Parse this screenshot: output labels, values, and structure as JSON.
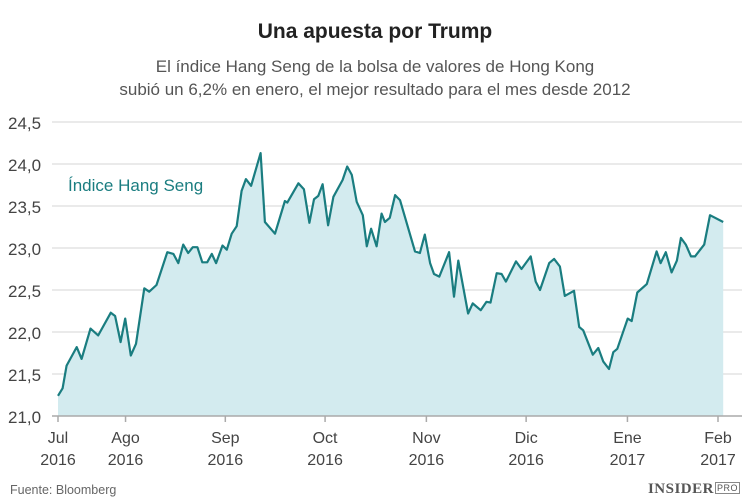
{
  "chart_data": {
    "type": "area",
    "title": "Una apuesta por Trump",
    "subtitle_lines": [
      "El índice Hang Seng de la bolsa de valores de Hong Kong",
      "subió un 6,2% en enero, el mejor resultado para el mes desde 2012"
    ],
    "series_label": "Índice Hang Seng",
    "x_unit": "days since 1 Jul 2016",
    "xlim": [
      0,
      215
    ],
    "ylim": [
      21.0,
      24.5
    ],
    "y_ticks": [
      21.0,
      21.5,
      22.0,
      22.5,
      23.0,
      23.5,
      24.0,
      24.5
    ],
    "y_tick_labels": [
      "21,0",
      "21,5",
      "22,0",
      "22,5",
      "23,0",
      "23,5",
      "24,0",
      "24,5"
    ],
    "x_ticks": [
      {
        "day": 0,
        "month": "Jul",
        "year": "2016"
      },
      {
        "day": 22,
        "month": "Ago",
        "year": "2016"
      },
      {
        "day": 54.5,
        "month": "Sep",
        "year": "2016"
      },
      {
        "day": 87,
        "month": "Oct",
        "year": "2016"
      },
      {
        "day": 120,
        "month": "Nov",
        "year": "2016"
      },
      {
        "day": 152.5,
        "month": "Dic",
        "year": "2016"
      },
      {
        "day": 185.5,
        "month": "Ene",
        "year": "2017"
      },
      {
        "day": 215,
        "month": "Feb",
        "year": "2017"
      }
    ],
    "x": [
      0,
      1.5,
      2.8,
      6.1,
      7.7,
      10.6,
      13.1,
      17.2,
      18.6,
      20.4,
      21.9,
      23.7,
      25.4,
      28.1,
      29.7,
      32.1,
      35.6,
      37.6,
      39.2,
      40.8,
      42.4,
      43.9,
      45.4,
      47,
      48.6,
      50.1,
      51.5,
      53.6,
      55,
      56.6,
      58.2,
      59.8,
      61.2,
      62.9,
      66,
      67.4,
      70.7,
      73.9,
      74.7,
      78.3,
      80.1,
      81.9,
      83.4,
      84.8,
      86.2,
      88,
      89.7,
      92.7,
      94.2,
      95.7,
      97.3,
      99.3,
      100.6,
      102,
      103.8,
      105.4,
      106.5,
      108.1,
      109.8,
      111.4,
      116.3,
      117.9,
      119.5,
      121.2,
      122.5,
      124.2,
      127.4,
      129,
      130.4,
      133.6,
      135.1,
      137.7,
      139.6,
      140.9,
      142.9,
      144.5,
      145.9,
      149.2,
      151,
      154,
      155.6,
      157,
      160,
      161.6,
      163.5,
      165.1,
      168.1,
      169.8,
      171.1,
      174.2,
      176,
      177.6,
      179.5,
      180.9,
      182.2,
      183.9,
      185.6,
      186.9,
      188.7,
      191.8,
      195,
      196.3,
      198,
      199.9,
      201.6,
      202.9,
      204.5,
      206.2,
      207.5,
      210.5,
      212.4,
      216.7
    ],
    "values": [
      21.24,
      21.33,
      21.6,
      21.82,
      21.68,
      22.04,
      21.96,
      22.23,
      22.19,
      21.88,
      22.16,
      21.72,
      21.86,
      22.52,
      22.48,
      22.56,
      22.95,
      22.93,
      22.82,
      23.04,
      22.94,
      23.01,
      23.01,
      22.83,
      22.83,
      22.93,
      22.82,
      23.03,
      22.98,
      23.17,
      23.26,
      23.68,
      23.82,
      23.74,
      24.13,
      23.31,
      23.17,
      23.56,
      23.54,
      23.77,
      23.7,
      23.3,
      23.58,
      23.62,
      23.76,
      23.27,
      23.61,
      23.81,
      23.97,
      23.87,
      23.55,
      23.39,
      23.02,
      23.23,
      23.02,
      23.41,
      23.31,
      23.36,
      23.63,
      23.57,
      22.96,
      22.94,
      23.16,
      22.82,
      22.69,
      22.66,
      22.95,
      22.42,
      22.85,
      22.22,
      22.34,
      22.26,
      22.36,
      22.35,
      22.7,
      22.69,
      22.6,
      22.84,
      22.75,
      22.9,
      22.6,
      22.5,
      22.82,
      22.87,
      22.78,
      22.43,
      22.49,
      22.06,
      22.02,
      21.73,
      21.81,
      21.65,
      21.56,
      21.76,
      21.8,
      21.98,
      22.16,
      22.13,
      22.47,
      22.57,
      22.96,
      22.82,
      22.95,
      22.71,
      22.85,
      23.12,
      23.04,
      22.9,
      22.9,
      23.04,
      23.39,
      23.31
    ],
    "colors": {
      "line": "#1a7d80",
      "fill": "#d3ebef",
      "grid": "#e3e3e3"
    },
    "grid": true
  },
  "footer": {
    "source": "Fuente: Bloomberg",
    "logo": "INSIDER",
    "logo_badge": "PRO"
  }
}
